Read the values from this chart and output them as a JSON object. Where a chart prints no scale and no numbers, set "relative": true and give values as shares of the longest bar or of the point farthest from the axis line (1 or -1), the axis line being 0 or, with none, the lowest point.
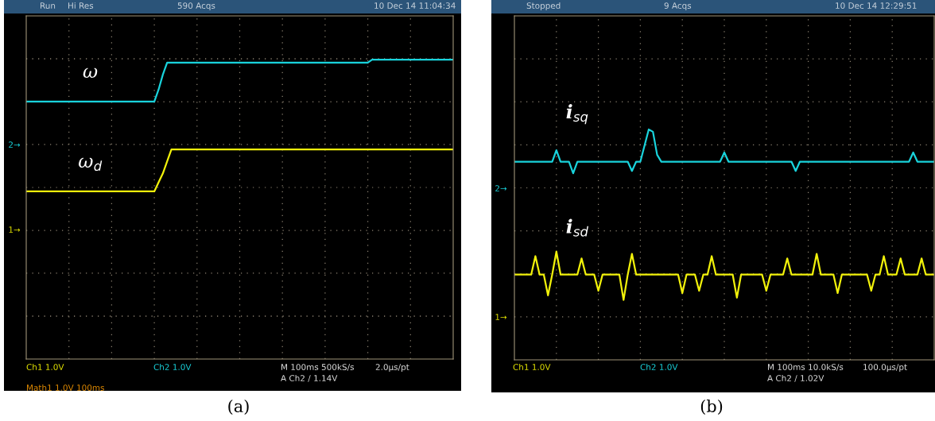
{
  "chart_data": [
    {
      "type": "line",
      "relative": true,
      "grid": true,
      "tick_labels": false,
      "categories": [
        null,
        null,
        null,
        null,
        null,
        null,
        null,
        null,
        null,
        null,
        null,
        null,
        null,
        null,
        null,
        null,
        null,
        null,
        null,
        null,
        null,
        null,
        null,
        null,
        null,
        null,
        null,
        null,
        null,
        null,
        null,
        null,
        null,
        null,
        null,
        null,
        null,
        null,
        null,
        null,
        null,
        null,
        null,
        null,
        null,
        null,
        null,
        null,
        null,
        null,
        null,
        null,
        null,
        null,
        null,
        null,
        null,
        null,
        null,
        null,
        null,
        null,
        null,
        null,
        null,
        null,
        null,
        null,
        null,
        null,
        null,
        null,
        null,
        null,
        null,
        null,
        null,
        null,
        null,
        null,
        null,
        null,
        null,
        null,
        null,
        null,
        null,
        null,
        null,
        null,
        null,
        null,
        null,
        null,
        null,
        null,
        null,
        null,
        null,
        null,
        null
      ],
      "series": [
        {
          "name": "ω",
          "color": "#19d3dc",
          "values": [
            0.86,
            0.86,
            0.86,
            0.86,
            0.86,
            0.86,
            0.86,
            0.86,
            0.86,
            0.86,
            0.86,
            0.86,
            0.86,
            0.86,
            0.86,
            0.86,
            0.86,
            0.86,
            0.86,
            0.86,
            0.86,
            0.86,
            0.86,
            0.86,
            0.86,
            0.86,
            0.86,
            0.86,
            0.86,
            0.86,
            0.86,
            0.9,
            0.95,
            0.99,
            0.99,
            0.99,
            0.99,
            0.99,
            0.99,
            0.99,
            0.99,
            0.99,
            0.99,
            0.99,
            0.99,
            0.99,
            0.99,
            0.99,
            0.99,
            0.99,
            0.99,
            0.99,
            0.99,
            0.99,
            0.99,
            0.99,
            0.99,
            0.99,
            0.99,
            0.99,
            0.99,
            0.99,
            0.99,
            0.99,
            0.99,
            0.99,
            0.99,
            0.99,
            0.99,
            0.99,
            0.99,
            0.99,
            0.99,
            0.99,
            0.99,
            0.99,
            0.99,
            0.99,
            0.99,
            0.99,
            0.99,
            1.0,
            1.0,
            1.0,
            1.0,
            1.0,
            1.0,
            1.0,
            1.0,
            1.0,
            1.0,
            1.0,
            1.0,
            1.0,
            1.0,
            1.0,
            1.0,
            1.0,
            1.0,
            1.0,
            1.0
          ]
        },
        {
          "name": "ω$_{d}$",
          "color": "#f2f20a",
          "values": [
            0.56,
            0.56,
            0.56,
            0.56,
            0.56,
            0.56,
            0.56,
            0.56,
            0.56,
            0.56,
            0.56,
            0.56,
            0.56,
            0.56,
            0.56,
            0.56,
            0.56,
            0.56,
            0.56,
            0.56,
            0.56,
            0.56,
            0.56,
            0.56,
            0.56,
            0.56,
            0.56,
            0.56,
            0.56,
            0.56,
            0.56,
            0.59,
            0.62,
            0.66,
            0.7,
            0.7,
            0.7,
            0.7,
            0.7,
            0.7,
            0.7,
            0.7,
            0.7,
            0.7,
            0.7,
            0.7,
            0.7,
            0.7,
            0.7,
            0.7,
            0.7,
            0.7,
            0.7,
            0.7,
            0.7,
            0.7,
            0.7,
            0.7,
            0.7,
            0.7,
            0.7,
            0.7,
            0.7,
            0.7,
            0.7,
            0.7,
            0.7,
            0.7,
            0.7,
            0.7,
            0.7,
            0.7,
            0.7,
            0.7,
            0.7,
            0.7,
            0.7,
            0.7,
            0.7,
            0.7,
            0.7,
            0.7,
            0.7,
            0.7,
            0.7,
            0.7,
            0.7,
            0.7,
            0.7,
            0.7,
            0.7,
            0.7,
            0.7,
            0.7,
            0.7,
            0.7,
            0.7,
            0.7,
            0.7,
            0.7,
            0.7
          ]
        }
      ],
      "annotations": [
        "Run",
        "Hi Res",
        "590 Acqs",
        "10 Dec 14 11:04:34",
        "Ch1 1.0V",
        "Ch2 1.0V",
        "M 100ms 500kS/s",
        "2.0µs/pt",
        "A Ch2 / 1.14V",
        "Math1 1.0V 100ms",
        "2→",
        "1→",
        "(a)"
      ]
    },
    {
      "type": "line",
      "relative": true,
      "grid": true,
      "tick_labels": false,
      "categories": [
        null,
        null,
        null,
        null,
        null,
        null,
        null,
        null,
        null,
        null,
        null,
        null,
        null,
        null,
        null,
        null,
        null,
        null,
        null,
        null,
        null,
        null,
        null,
        null,
        null,
        null,
        null,
        null,
        null,
        null,
        null,
        null,
        null,
        null,
        null,
        null,
        null,
        null,
        null,
        null,
        null,
        null,
        null,
        null,
        null,
        null,
        null,
        null,
        null,
        null,
        null,
        null,
        null,
        null,
        null,
        null,
        null,
        null,
        null,
        null,
        null,
        null,
        null,
        null,
        null,
        null,
        null,
        null,
        null,
        null,
        null,
        null,
        null,
        null,
        null,
        null,
        null,
        null,
        null,
        null,
        null,
        null,
        null,
        null,
        null,
        null,
        null,
        null,
        null,
        null,
        null,
        null,
        null,
        null,
        null,
        null,
        null,
        null,
        null,
        null,
        null
      ],
      "series": [
        {
          "name": "i$_{sq}$",
          "color": "#19d3dc",
          "values": [
            0.86,
            0.86,
            0.86,
            0.86,
            0.86,
            0.86,
            0.86,
            0.86,
            0.86,
            0.86,
            0.91,
            0.86,
            0.86,
            0.86,
            0.81,
            0.86,
            0.86,
            0.86,
            0.86,
            0.86,
            0.86,
            0.86,
            0.86,
            0.86,
            0.86,
            0.86,
            0.86,
            0.86,
            0.82,
            0.86,
            0.86,
            0.93,
            1.0,
            0.99,
            0.89,
            0.86,
            0.86,
            0.86,
            0.86,
            0.86,
            0.86,
            0.86,
            0.86,
            0.86,
            0.86,
            0.86,
            0.86,
            0.86,
            0.86,
            0.86,
            0.9,
            0.86,
            0.86,
            0.86,
            0.86,
            0.86,
            0.86,
            0.86,
            0.86,
            0.86,
            0.86,
            0.86,
            0.86,
            0.86,
            0.86,
            0.86,
            0.86,
            0.82,
            0.86,
            0.86,
            0.86,
            0.86,
            0.86,
            0.86,
            0.86,
            0.86,
            0.86,
            0.86,
            0.86,
            0.86,
            0.86,
            0.86,
            0.86,
            0.86,
            0.86,
            0.86,
            0.86,
            0.86,
            0.86,
            0.86,
            0.86,
            0.86,
            0.86,
            0.86,
            0.86,
            0.9,
            0.86,
            0.86,
            0.86,
            0.86,
            0.86
          ]
        },
        {
          "name": "i$_{sd}$",
          "color": "#f2f20a",
          "values": [
            0.37,
            0.37,
            0.37,
            0.37,
            0.37,
            0.45,
            0.37,
            0.37,
            0.28,
            0.37,
            0.47,
            0.37,
            0.37,
            0.37,
            0.37,
            0.37,
            0.44,
            0.37,
            0.37,
            0.37,
            0.3,
            0.37,
            0.37,
            0.37,
            0.37,
            0.37,
            0.26,
            0.37,
            0.46,
            0.37,
            0.37,
            0.37,
            0.37,
            0.37,
            0.37,
            0.37,
            0.37,
            0.37,
            0.37,
            0.37,
            0.29,
            0.37,
            0.37,
            0.37,
            0.3,
            0.37,
            0.37,
            0.45,
            0.37,
            0.37,
            0.37,
            0.37,
            0.37,
            0.27,
            0.37,
            0.37,
            0.37,
            0.37,
            0.37,
            0.37,
            0.3,
            0.37,
            0.37,
            0.37,
            0.37,
            0.44,
            0.37,
            0.37,
            0.37,
            0.37,
            0.37,
            0.37,
            0.46,
            0.37,
            0.37,
            0.37,
            0.37,
            0.29,
            0.37,
            0.37,
            0.37,
            0.37,
            0.37,
            0.37,
            0.37,
            0.3,
            0.37,
            0.37,
            0.45,
            0.37,
            0.37,
            0.37,
            0.44,
            0.37,
            0.37,
            0.37,
            0.37,
            0.44,
            0.37,
            0.37,
            0.37
          ]
        }
      ],
      "annotations": [
        "Stopped",
        "9 Acqs",
        "10 Dec 14 12:29:51",
        "Ch1 1.0V",
        "Ch2 1.0V",
        "M 100ms 10.0kS/s",
        "100.0µs/pt",
        "A Ch2 / 1.02V",
        "2→",
        "1→",
        "(b)"
      ]
    }
  ]
}
